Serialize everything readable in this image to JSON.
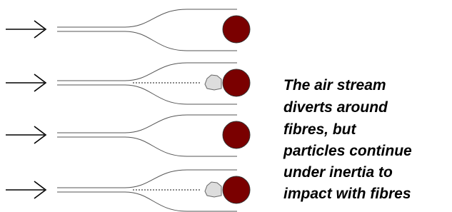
{
  "caption": {
    "lines": [
      "The air stream",
      "diverts around",
      "fibres, but",
      "particles continue",
      "under inertia to",
      "impact with fibres"
    ]
  }
}
